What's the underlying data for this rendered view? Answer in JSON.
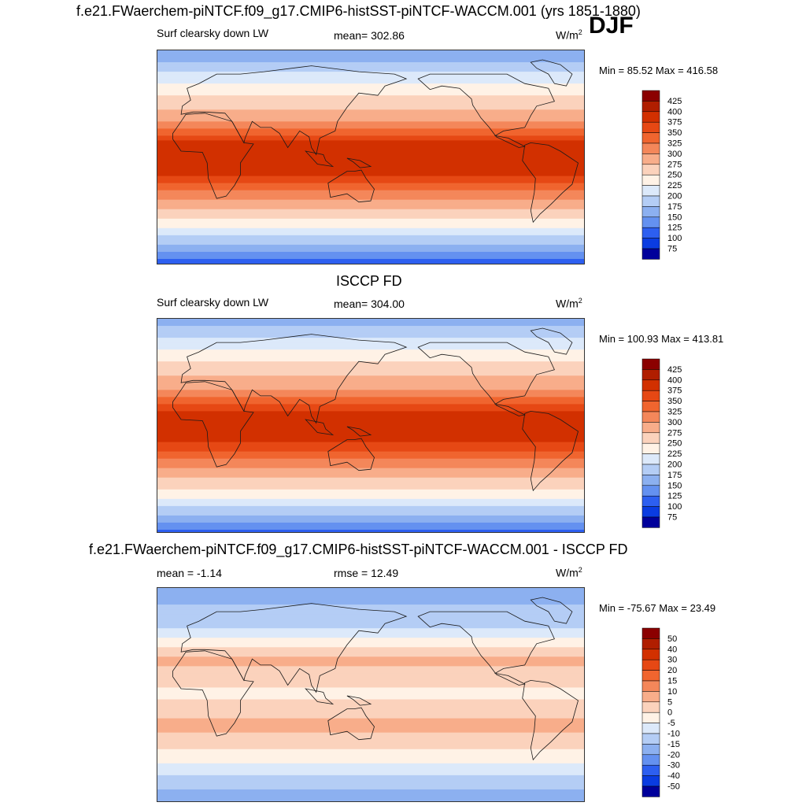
{
  "season": "DJF",
  "panels": [
    {
      "id": "model",
      "title": "f.e21.FWaerchem-piNTCF.f09_g17.CMIP6-histSST-piNTCF-WACCM.001 (yrs 1851-1880)",
      "left_label": "Surf clearsky down LW",
      "center_label": "mean= 302.86",
      "units_main": "W/m",
      "units_sup": "2",
      "minmax": "Min =  85.52 Max = 416.58"
    },
    {
      "id": "obs",
      "title": "ISCCP FD",
      "left_label": "Surf clearsky down LW",
      "center_label": "mean= 304.00",
      "units_main": "W/m",
      "units_sup": "2",
      "minmax": "Min = 100.93 Max = 413.81"
    },
    {
      "id": "diff",
      "title": "f.e21.FWaerchem-piNTCF.f09_g17.CMIP6-histSST-piNTCF-WACCM.001 - ISCCP FD",
      "left_label": "mean =  -1.14",
      "center_label": "rmse =  12.49",
      "units_main": "W/m",
      "units_sup": "2",
      "minmax": "Min = -75.67 Max =  23.49"
    }
  ],
  "chart_data": [
    {
      "type": "heatmap",
      "title": "Surf clearsky down LW (model)",
      "units": "W/m2",
      "mean": 302.86,
      "min": 85.52,
      "max": 416.58,
      "levels": [
        425,
        400,
        375,
        350,
        325,
        300,
        275,
        250,
        225,
        200,
        175,
        150,
        125,
        100,
        75
      ],
      "level_labels": [
        "425",
        "400",
        "375",
        "350",
        "325",
        "300",
        "275",
        "250",
        "225",
        "200",
        "175",
        "150",
        "125",
        "100",
        "75"
      ],
      "colors": [
        "#8b0000",
        "#b01e00",
        "#d23000",
        "#e64814",
        "#f0652f",
        "#f4875a",
        "#f8ad8a",
        "#fbd2bc",
        "#fff2e6",
        "#dce9fa",
        "#b4cdf5",
        "#8cb0f0",
        "#6491f0",
        "#2d5ff0",
        "#0a3ce1",
        "#00009b"
      ],
      "zonal_profile_lat": [
        90,
        60,
        30,
        10,
        0,
        -10,
        -30,
        -60,
        -90
      ],
      "zonal_profile_values": [
        150,
        230,
        300,
        390,
        400,
        395,
        320,
        225,
        110
      ]
    },
    {
      "type": "heatmap",
      "title": "Surf clearsky down LW (ISCCP FD)",
      "units": "W/m2",
      "mean": 304.0,
      "min": 100.93,
      "max": 413.81,
      "levels": [
        425,
        400,
        375,
        350,
        325,
        300,
        275,
        250,
        225,
        200,
        175,
        150,
        125,
        100,
        75
      ],
      "level_labels": [
        "425",
        "400",
        "375",
        "350",
        "325",
        "300",
        "275",
        "250",
        "225",
        "200",
        "175",
        "150",
        "125",
        "100",
        "75"
      ],
      "colors": [
        "#8b0000",
        "#b01e00",
        "#d23000",
        "#e64814",
        "#f0652f",
        "#f4875a",
        "#f8ad8a",
        "#fbd2bc",
        "#fff2e6",
        "#dce9fa",
        "#b4cdf5",
        "#8cb0f0",
        "#6491f0",
        "#2d5ff0",
        "#0a3ce1",
        "#00009b"
      ],
      "zonal_profile_lat": [
        90,
        60,
        30,
        10,
        0,
        -10,
        -30,
        -60,
        -90
      ],
      "zonal_profile_values": [
        160,
        235,
        300,
        385,
        395,
        390,
        318,
        230,
        120
      ]
    },
    {
      "type": "heatmap",
      "title": "model - ISCCP FD",
      "units": "W/m2",
      "mean": -1.14,
      "rmse": 12.49,
      "min": -75.67,
      "max": 23.49,
      "levels": [
        50,
        40,
        30,
        20,
        15,
        10,
        5,
        0,
        -5,
        -10,
        -15,
        -20,
        -30,
        -40,
        -50
      ],
      "level_labels": [
        "50",
        "40",
        "30",
        "20",
        "15",
        "10",
        "5",
        "0",
        "-5",
        "-10",
        "-15",
        "-20",
        "-30",
        "-40",
        "-50"
      ],
      "colors": [
        "#8b0000",
        "#b01e00",
        "#d23000",
        "#e64814",
        "#f0652f",
        "#f4875a",
        "#f8ad8a",
        "#fbd2bc",
        "#fff2e6",
        "#dce9fa",
        "#b4cdf5",
        "#8cb0f0",
        "#6491f0",
        "#2d5ff0",
        "#0a3ce1",
        "#00009b"
      ],
      "zonal_profile_lat": [
        90,
        60,
        30,
        10,
        0,
        -10,
        -30,
        -60,
        -90
      ],
      "zonal_profile_values": [
        -18,
        -12,
        6,
        2,
        -4,
        4,
        6,
        -6,
        -20
      ]
    }
  ]
}
